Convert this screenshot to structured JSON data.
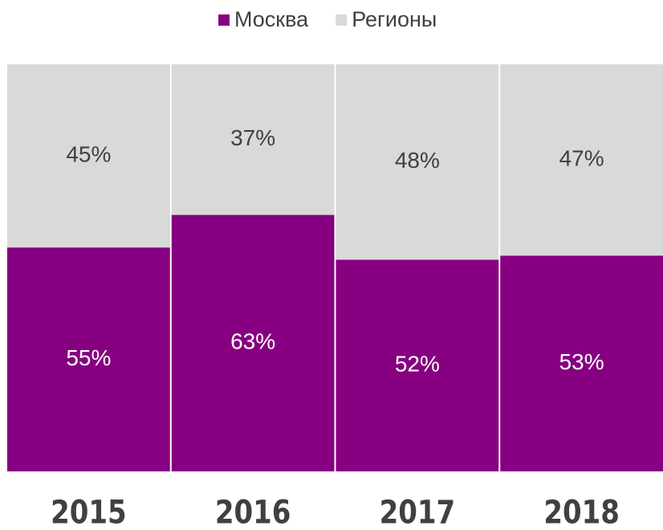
{
  "chart_data": {
    "type": "stacked_bar",
    "categories": [
      "2015",
      "2016",
      "2017",
      "2018"
    ],
    "series": [
      {
        "name": "Москва",
        "color": "#870081",
        "values": [
          55,
          63,
          52,
          53
        ],
        "value_labels": [
          "55%",
          "63%",
          "52%",
          "53%"
        ]
      },
      {
        "name": "Регионы",
        "color": "#d9d9d9",
        "values": [
          45,
          37,
          48,
          47
        ],
        "value_labels": [
          "45%",
          "37%",
          "48%",
          "47%"
        ]
      }
    ],
    "ylim": [
      0,
      100
    ],
    "legend": "top"
  }
}
